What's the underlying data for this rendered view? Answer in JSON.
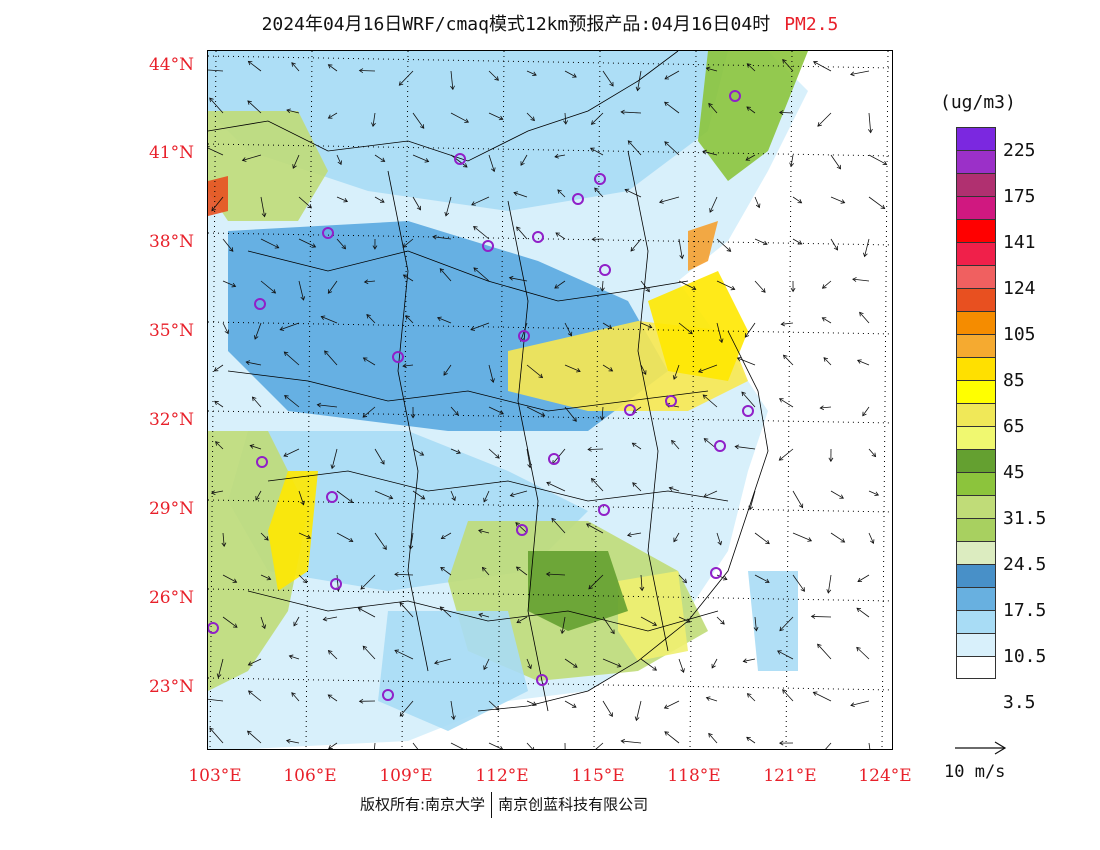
{
  "title": {
    "main": "2024年04月16日WRF/cmaq模式12km预报产品:04月16日04时",
    "pollutant": "PM2.5"
  },
  "map": {
    "lat_labels": [
      "44°N",
      "41°N",
      "38°N",
      "35°N",
      "32°N",
      "29°N",
      "26°N",
      "23°N"
    ],
    "lon_labels": [
      "103°E",
      "106°E",
      "109°E",
      "112°E",
      "115°E",
      "118°E",
      "121°E",
      "124°E"
    ],
    "colors": {
      "sea": "#ffffff",
      "low": "#d8f0fb",
      "light_blue": "#a8dcf5",
      "blue": "#5aa8e0",
      "dark_blue": "#3c84c4",
      "pale_green": "#dcecc0",
      "light_green": "#c0dc78",
      "green": "#8cc43c",
      "dark_green": "#64a030",
      "yellow_green": "#f0f070",
      "light_yellow": "#f8e850",
      "yellow": "#ffe800",
      "orange": "#f5a030",
      "red_orange": "#e85020",
      "marker": "#9020c8",
      "border": "#000000"
    }
  },
  "colorbar": {
    "unit": "(ug/m3)",
    "colors": [
      "#7b28e0",
      "#9b30c8",
      "#b03070",
      "#d01880",
      "#ff0000",
      "#f0204a",
      "#f06060",
      "#e85020",
      "#f58c00",
      "#f5aa30",
      "#ffe000",
      "#ffff00",
      "#f0e858",
      "#f0f870",
      "#64a030",
      "#8cc43c",
      "#c0dc78",
      "#a8d060",
      "#dcecc0",
      "#4890c8",
      "#68b0e0",
      "#a8dcf5",
      "#d8f0fb",
      "#ffffff"
    ],
    "labels": [
      "225",
      "175",
      "141",
      "124",
      "105",
      "85",
      "65",
      "45",
      "31.5",
      "24.5",
      "17.5",
      "10.5",
      "3.5"
    ]
  },
  "reference_vector": {
    "label": "10 m/s"
  },
  "copyright": {
    "left": "版权所有:南京大学",
    "right": "南京创蓝科技有限公司"
  }
}
